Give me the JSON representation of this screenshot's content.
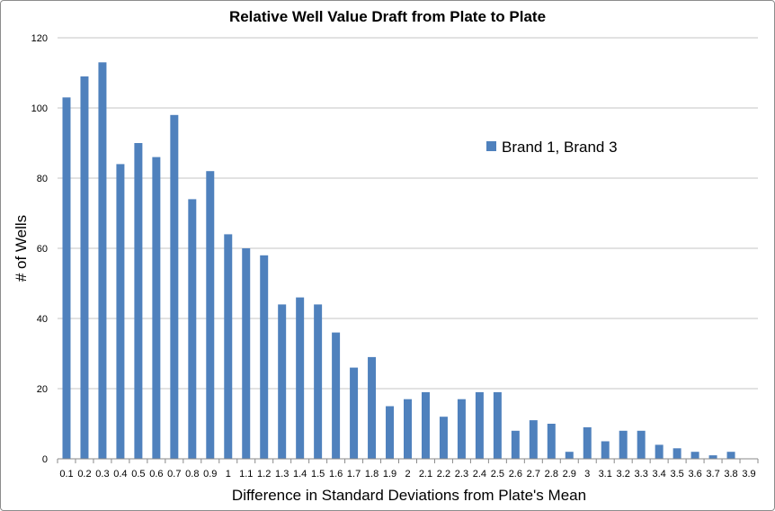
{
  "chart_data": {
    "type": "bar",
    "title": "Relative Well Value Draft from Plate to Plate",
    "xlabel": "Difference in Standard Deviations from Plate's Mean",
    "ylabel": "# of Wells",
    "ylim": [
      0,
      120
    ],
    "yticks": [
      "0",
      "20",
      "40",
      "60",
      "80",
      "100",
      "120"
    ],
    "grid": true,
    "legend_position": "right",
    "series": [
      {
        "name": "Brand 1, Brand 3",
        "color": "#4f81bd",
        "values": [
          103,
          109,
          113,
          84,
          90,
          86,
          98,
          74,
          82,
          64,
          60,
          58,
          44,
          46,
          44,
          36,
          26,
          29,
          15,
          17,
          19,
          12,
          17,
          19,
          19,
          8,
          11,
          10,
          2,
          9,
          5,
          8,
          8,
          4,
          3,
          2,
          1,
          2,
          0
        ]
      }
    ],
    "categories": [
      "0.1",
      "0.2",
      "0.3",
      "0.4",
      "0.5",
      "0.6",
      "0.7",
      "0.8",
      "0.9",
      "1",
      "1.1",
      "1.2",
      "1.3",
      "1.4",
      "1.5",
      "1.6",
      "1.7",
      "1.8",
      "1.9",
      "2",
      "2.1",
      "2.2",
      "2.3",
      "2.4",
      "2.5",
      "2.6",
      "2.7",
      "2.8",
      "2.9",
      "3",
      "3.1",
      "3.2",
      "3.3",
      "3.4",
      "3.5",
      "3.6",
      "3.7",
      "3.8",
      "3.9"
    ]
  }
}
